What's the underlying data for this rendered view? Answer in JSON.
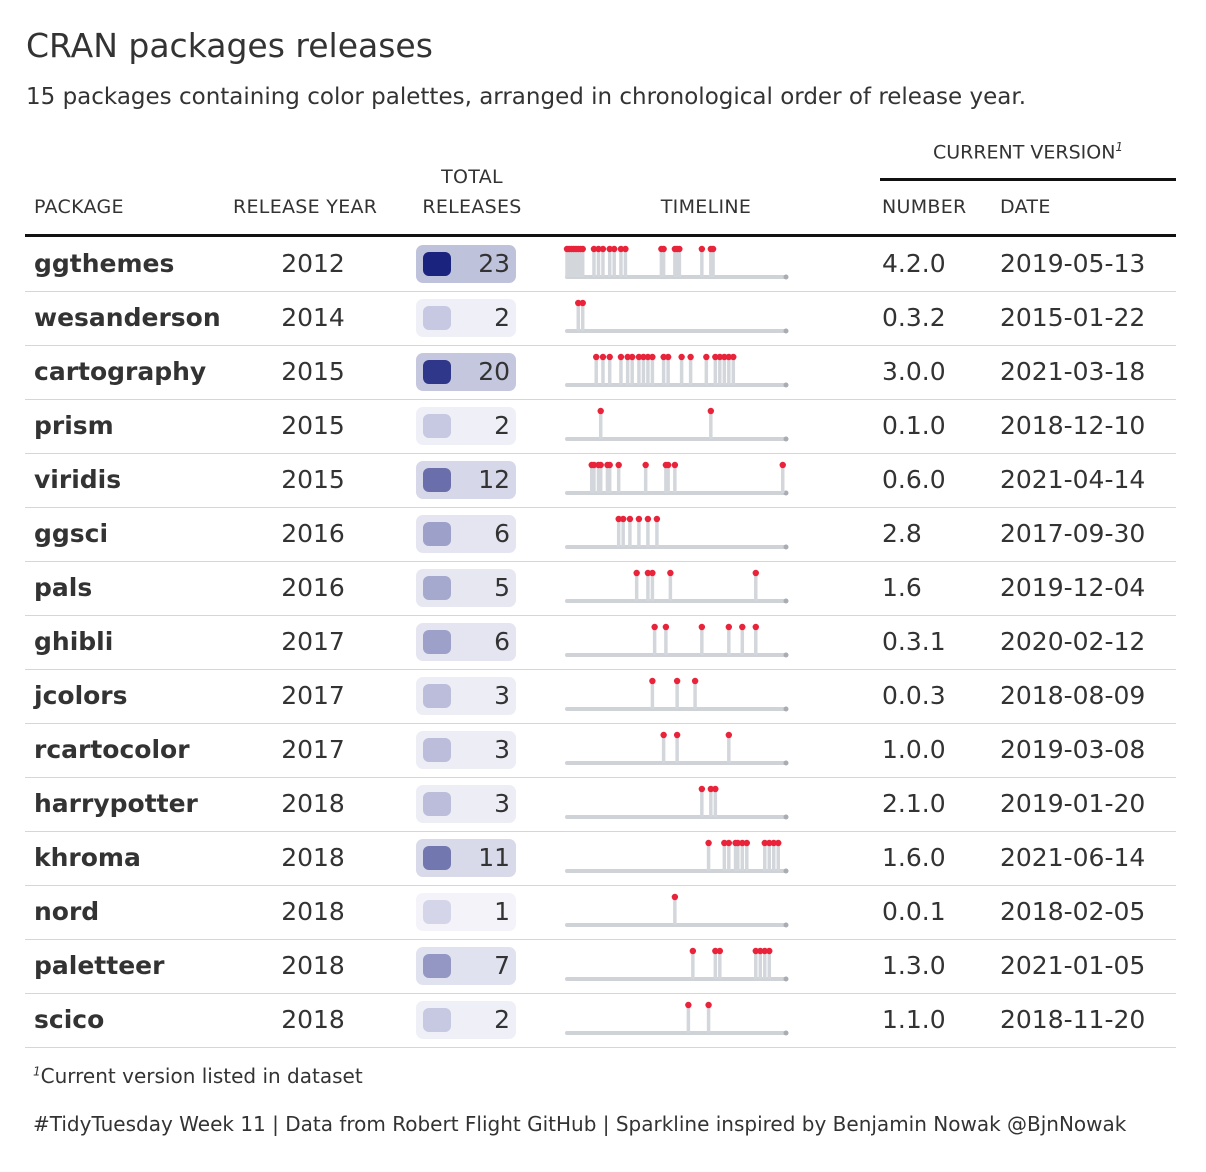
{
  "title": "CRAN packages releases",
  "subtitle": "15 packages containing color palettes, arranged in chronological order of release year.",
  "headers": {
    "spanner": "CURRENT VERSION",
    "spanner_mark": "1",
    "package": "PACKAGE",
    "release_year": "RELEASE YEAR",
    "total_top": "TOTAL",
    "total_bottom": "RELEASES",
    "timeline": "TIMELINE",
    "number": "NUMBER",
    "date": "DATE"
  },
  "footnote_mark": "1",
  "footnote": "Current version listed in dataset",
  "caption": "#TidyTuesday Week 11 | Data from Robert Flight GitHub | Sparkline inspired by Benjamin Nowak @BjnNowak",
  "colors": {
    "spike": "#d3d7dc",
    "release_dot": "#e8233a",
    "baseline": "#cfd3d8",
    "rule": "#111111",
    "scale_low": "#e8e8f4",
    "scale_high": "#1a237e"
  },
  "chart_data": {
    "type": "table",
    "timeline_range": [
      2012.0,
      2021.7
    ],
    "rows": [
      {
        "package": "ggthemes",
        "release_year": "2012",
        "total_releases": 23,
        "version": "4.2.0",
        "date": "2019-05-13",
        "releases": [
          2012.0,
          2012.1,
          2012.2,
          2012.3,
          2012.4,
          2012.5,
          2012.6,
          2012.7,
          2013.2,
          2013.4,
          2013.6,
          2013.9,
          2014.1,
          2014.4,
          2014.6,
          2016.2,
          2016.3,
          2016.8,
          2016.9,
          2017.0,
          2018.0,
          2018.4,
          2018.5
        ]
      },
      {
        "package": "wesanderson",
        "release_year": "2014",
        "total_releases": 2,
        "version": "0.3.2",
        "date": "2015-01-22",
        "releases": [
          2012.5,
          2012.7
        ]
      },
      {
        "package": "cartography",
        "release_year": "2015",
        "total_releases": 20,
        "version": "3.0.0",
        "date": "2021-03-18",
        "releases": [
          2013.3,
          2013.6,
          2013.9,
          2014.4,
          2014.7,
          2014.9,
          2015.2,
          2015.4,
          2015.6,
          2015.8,
          2016.3,
          2016.5,
          2017.1,
          2017.5,
          2018.2,
          2018.6,
          2018.8,
          2019.0,
          2019.2,
          2019.4
        ]
      },
      {
        "package": "prism",
        "release_year": "2015",
        "total_releases": 2,
        "version": "0.1.0",
        "date": "2018-12-10",
        "releases": [
          2013.5,
          2018.4
        ]
      },
      {
        "package": "viridis",
        "release_year": "2015",
        "total_releases": 12,
        "version": "0.6.0",
        "date": "2021-04-14",
        "releases": [
          2013.1,
          2013.2,
          2013.4,
          2013.5,
          2013.8,
          2013.9,
          2014.3,
          2015.5,
          2016.4,
          2016.5,
          2016.8,
          2021.6
        ]
      },
      {
        "package": "ggsci",
        "release_year": "2016",
        "total_releases": 6,
        "version": "2.8",
        "date": "2017-09-30",
        "releases": [
          2014.3,
          2014.5,
          2014.8,
          2015.2,
          2015.6,
          2016.0
        ]
      },
      {
        "package": "pals",
        "release_year": "2016",
        "total_releases": 5,
        "version": "1.6",
        "date": "2019-12-04",
        "releases": [
          2015.1,
          2015.6,
          2015.8,
          2016.6,
          2020.4
        ]
      },
      {
        "package": "ghibli",
        "release_year": "2017",
        "total_releases": 6,
        "version": "0.3.1",
        "date": "2020-02-12",
        "releases": [
          2015.9,
          2016.4,
          2018.0,
          2019.2,
          2019.8,
          2020.4
        ]
      },
      {
        "package": "jcolors",
        "release_year": "2017",
        "total_releases": 3,
        "version": "0.0.3",
        "date": "2018-08-09",
        "releases": [
          2015.8,
          2016.9,
          2017.7
        ]
      },
      {
        "package": "rcartocolor",
        "release_year": "2017",
        "total_releases": 3,
        "version": "1.0.0",
        "date": "2019-03-08",
        "releases": [
          2016.3,
          2016.9,
          2019.2
        ]
      },
      {
        "package": "harrypotter",
        "release_year": "2018",
        "total_releases": 3,
        "version": "2.1.0",
        "date": "2019-01-20",
        "releases": [
          2018.0,
          2018.4,
          2018.6
        ]
      },
      {
        "package": "khroma",
        "release_year": "2018",
        "total_releases": 11,
        "version": "1.6.0",
        "date": "2021-06-14",
        "releases": [
          2018.3,
          2019.0,
          2019.2,
          2019.5,
          2019.6,
          2019.8,
          2020.0,
          2020.8,
          2021.0,
          2021.2,
          2021.4
        ]
      },
      {
        "package": "nord",
        "release_year": "2018",
        "total_releases": 1,
        "version": "0.0.1",
        "date": "2018-02-05",
        "releases": [
          2016.8
        ]
      },
      {
        "package": "paletteer",
        "release_year": "2018",
        "total_releases": 7,
        "version": "1.3.0",
        "date": "2021-01-05",
        "releases": [
          2017.6,
          2018.6,
          2018.8,
          2020.4,
          2020.6,
          2020.8,
          2021.0
        ]
      },
      {
        "package": "scico",
        "release_year": "2018",
        "total_releases": 2,
        "version": "1.1.0",
        "date": "2018-11-20",
        "releases": [
          2017.4,
          2018.3
        ]
      }
    ]
  }
}
